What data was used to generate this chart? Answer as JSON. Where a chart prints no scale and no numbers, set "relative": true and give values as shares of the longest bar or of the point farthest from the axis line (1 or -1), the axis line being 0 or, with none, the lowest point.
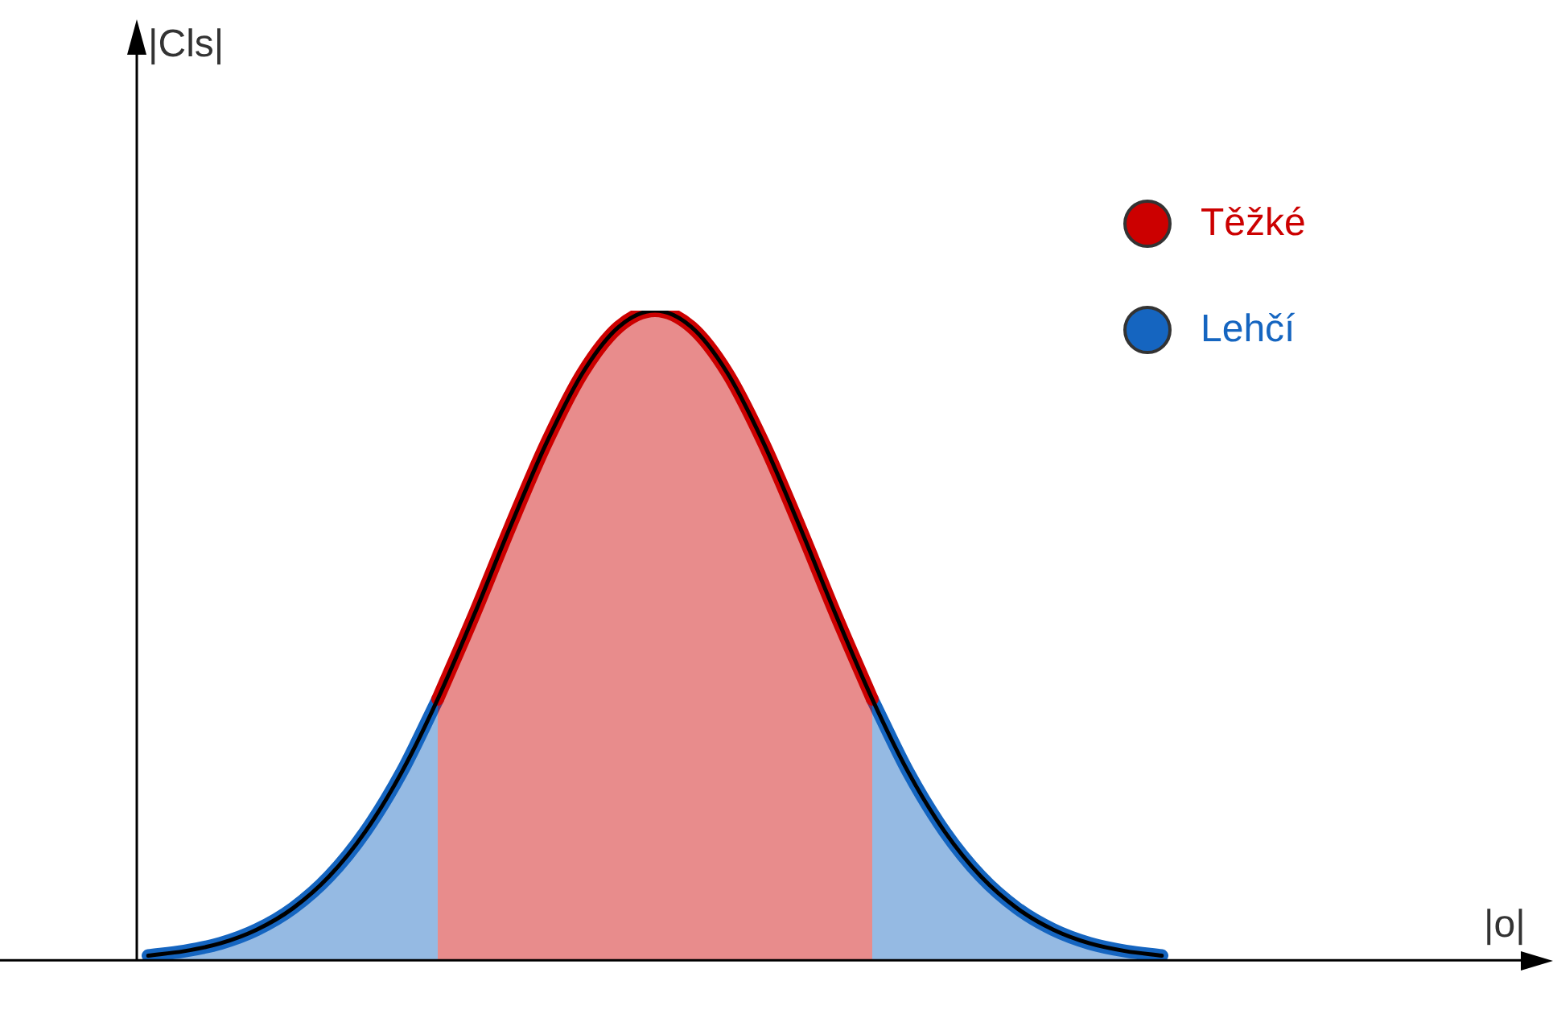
{
  "chart_data": {
    "type": "area",
    "relative": true,
    "annotations": [
      "|Cls|",
      "|o|"
    ],
    "legend": "top right",
    "categories": [
      null,
      null,
      null,
      null,
      null,
      null,
      null,
      null,
      null,
      null,
      null,
      null,
      null,
      null,
      null,
      null,
      null,
      null,
      null,
      null,
      null,
      null,
      null,
      null,
      null,
      null,
      null,
      null,
      null
    ],
    "series": [
      {
        "name": "Těžké",
        "color": "#cc0000",
        "values": [
          null,
          null,
          null,
          null,
          null,
          null,
          null,
          null,
          0.402,
          0.531,
          0.667,
          0.796,
          0.904,
          0.975,
          1,
          0.975,
          0.904,
          0.796,
          0.667,
          0.531,
          0.402,
          null,
          null,
          null,
          null,
          null,
          null,
          null,
          null
        ]
      },
      {
        "name": "Lehčí",
        "color": "#1565c0",
        "values": [
          0.007,
          0.014,
          0.026,
          0.047,
          0.08,
          0.129,
          0.198,
          0.289,
          0.402,
          null,
          null,
          null,
          null,
          null,
          null,
          null,
          null,
          null,
          null,
          null,
          0.402,
          0.289,
          0.198,
          0.129,
          0.08,
          0.047,
          0.026,
          0.014,
          0.007
        ]
      },
      {
        "type": "line",
        "color": "#000000",
        "values": [
          0.007,
          0.014,
          0.026,
          0.047,
          0.08,
          0.129,
          0.198,
          0.289,
          0.402,
          0.531,
          0.667,
          0.796,
          0.904,
          0.975,
          1,
          0.975,
          0.904,
          0.796,
          0.667,
          0.531,
          0.402,
          0.289,
          0.198,
          0.129,
          0.08,
          0.047,
          0.026,
          0.014,
          0.007
        ]
      }
    ]
  }
}
